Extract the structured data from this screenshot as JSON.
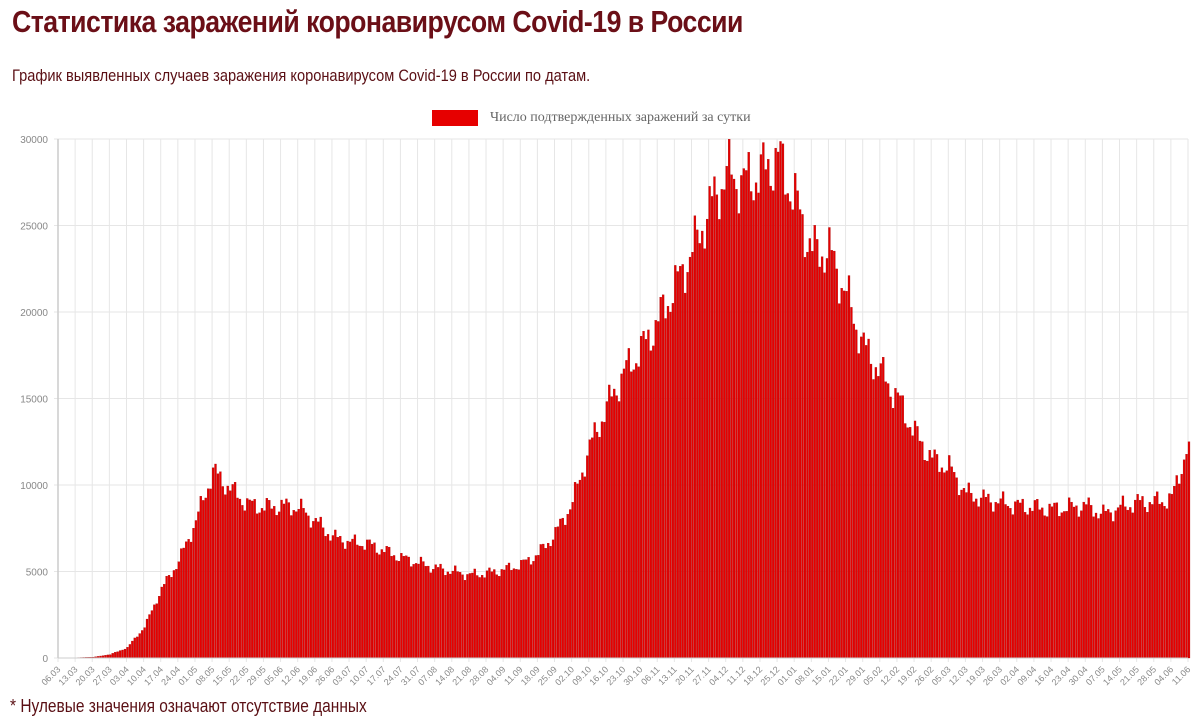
{
  "page": {
    "title": "Статистика заражений коронавирусом Covid-19 в России",
    "subtitle": "График выявленных случаев заражения коронавирусом Covid-19 в России по датам.",
    "footnote": "* Нулевые значения означают отсутствие данных"
  },
  "colors": {
    "title": "#6b0f17",
    "bar_fill": "#e60000",
    "bar_border": "#a00000",
    "grid": "#e6e6e6",
    "axis": "#cccccc",
    "tick_label": "#888888"
  },
  "chart_data": {
    "type": "bar",
    "title": "",
    "legend": [
      "Число подтвержденных заражений за сутки"
    ],
    "legend_position": "top",
    "xlabel": "",
    "ylabel": "",
    "ylim": [
      0,
      30000
    ],
    "yticks": [
      0,
      5000,
      10000,
      15000,
      20000,
      25000,
      30000
    ],
    "grid": true,
    "x_granularity": "daily (06.03.2020 – 11.06.2021, 463 days); values below are weekly samples at tick labels",
    "categories": [
      "06.03",
      "13.03",
      "20.03",
      "27.03",
      "03.04",
      "10.04",
      "17.04",
      "24.04",
      "01.05",
      "08.05",
      "15.05",
      "22.05",
      "29.05",
      "05.06",
      "12.06",
      "19.06",
      "26.06",
      "03.07",
      "10.07",
      "17.07",
      "24.07",
      "31.07",
      "07.08",
      "14.08",
      "21.08",
      "28.08",
      "04.09",
      "11.09",
      "18.09",
      "25.09",
      "02.10",
      "09.10",
      "16.10",
      "23.10",
      "30.10",
      "06.11",
      "13.11",
      "20.11",
      "27.11",
      "04.12",
      "11.12",
      "18.12",
      "25.12",
      "01.01",
      "08.01",
      "15.01",
      "22.01",
      "29.01",
      "05.02",
      "12.02",
      "19.02",
      "26.02",
      "05.03",
      "12.03",
      "19.03",
      "26.03",
      "02.04",
      "09.04",
      "16.04",
      "23.04",
      "30.04",
      "07.05",
      "14.05",
      "21.05",
      "28.05",
      "04.06",
      "11.06"
    ],
    "series": [
      {
        "name": "Число подтвержденных заражений за сутки",
        "values": [
          0,
          20,
          50,
          200,
          600,
          1800,
          4000,
          5600,
          7900,
          10800,
          9800,
          8900,
          8700,
          8800,
          8700,
          7900,
          7000,
          6700,
          6600,
          6200,
          5800,
          5500,
          5200,
          5000,
          4800,
          4900,
          5100,
          5400,
          6000,
          7200,
          9000,
          12200,
          14500,
          16500,
          17800,
          19500,
          21500,
          23500,
          26000,
          28000,
          27500,
          28000,
          29000,
          26500,
          23500,
          23500,
          21000,
          18000,
          16500,
          15000,
          13000,
          11500,
          11000,
          9500,
          9200,
          9000,
          8800,
          8700,
          8600,
          8700,
          8800,
          8300,
          8700,
          9000,
          9000,
          9200,
          12500
        ]
      }
    ]
  }
}
